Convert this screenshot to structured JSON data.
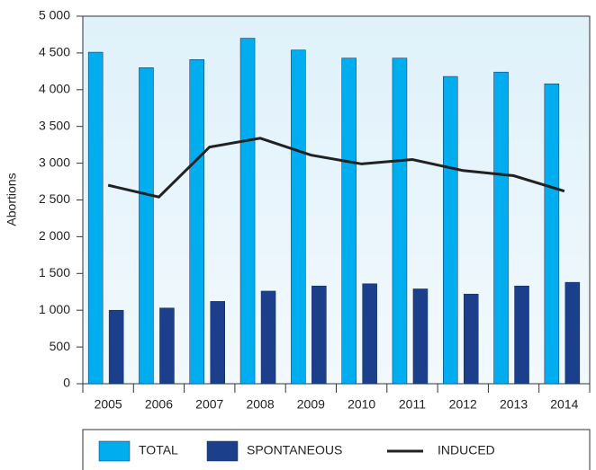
{
  "chart_data": {
    "type": "bar",
    "ylabel": "Abortions",
    "categories": [
      "2005",
      "2006",
      "2007",
      "2008",
      "2009",
      "2010",
      "2011",
      "2012",
      "2013",
      "2014"
    ],
    "series": [
      {
        "name": "TOTAL",
        "type": "bar",
        "color": "#00aeef",
        "values": [
          4510,
          4300,
          4410,
          4700,
          4540,
          4430,
          4430,
          4180,
          4240,
          4080
        ]
      },
      {
        "name": "SPONTANEOUS",
        "type": "bar",
        "color": "#1c3f8c",
        "values": [
          1000,
          1030,
          1120,
          1260,
          1330,
          1360,
          1290,
          1220,
          1330,
          1380
        ]
      },
      {
        "name": "INDUCED",
        "type": "line",
        "color": "#222222",
        "values": [
          2700,
          2540,
          3220,
          3340,
          3110,
          2990,
          3050,
          2900,
          2830,
          2620
        ]
      }
    ],
    "ylim": [
      0,
      5000
    ],
    "yticks": [
      0,
      500,
      {
        "value": 1000,
        "label": "1 000"
      },
      {
        "value": 1500,
        "label": "1 500"
      },
      {
        "value": 2000,
        "label": "2 000"
      },
      {
        "value": 2500,
        "label": "2 500"
      },
      {
        "value": 3000,
        "label": "3 000"
      },
      {
        "value": 3500,
        "label": "3 500"
      },
      {
        "value": 4000,
        "label": "4 000"
      },
      {
        "value": 4500,
        "label": "4 500"
      },
      {
        "value": 5000,
        "label": "5 000"
      }
    ],
    "grid": false,
    "legend": "bottom"
  }
}
